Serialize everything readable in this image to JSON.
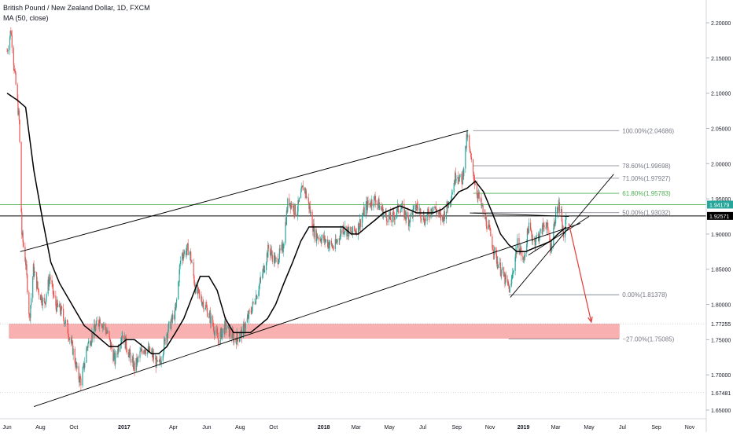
{
  "header": {
    "title": "British Pound / New Zealand Dollar, 1D, FXCM",
    "indicator": "MA (50, close)"
  },
  "colors": {
    "up": "#26a69a",
    "down": "#ef5350",
    "ma": "#000000",
    "trendline": "#000000",
    "fib_line": "#787b86",
    "fib_618": "#4caf50",
    "support_zone": "#f7a3a3",
    "arrow": "#e53935",
    "price_tag_bg": "#26a69a",
    "last_tag_bg": "#000000"
  },
  "chart_data": {
    "type": "candlestick",
    "symbol": "British Pound / New Zealand Dollar",
    "timeframe": "1D",
    "source": "FXCM",
    "x_range": [
      "2016-06-01",
      "2019-11-30"
    ],
    "ylim": [
      1.64,
      2.225
    ],
    "y_ticks": [
      1.65,
      1.7,
      1.75,
      1.8,
      1.85,
      1.9,
      1.95,
      2.0,
      2.05,
      2.1,
      2.15,
      2.2
    ],
    "y_tick_labels": [
      "1.65000",
      "1.70000",
      "1.75000",
      "1.80000",
      "1.85000",
      "1.90000",
      "1.95000",
      "2.00000",
      "2.05000",
      "2.10000",
      "2.15000",
      "2.20000"
    ],
    "x_ticks": [
      {
        "date": "2016-06-01",
        "label": "Jun"
      },
      {
        "date": "2016-08-01",
        "label": "Aug"
      },
      {
        "date": "2016-10-01",
        "label": "Oct"
      },
      {
        "date": "2017-01-01",
        "label": "2017"
      },
      {
        "date": "2017-04-01",
        "label": "Apr"
      },
      {
        "date": "2017-06-01",
        "label": "Jun"
      },
      {
        "date": "2017-08-01",
        "label": "Aug"
      },
      {
        "date": "2017-10-01",
        "label": "Oct"
      },
      {
        "date": "2018-01-01",
        "label": "2018"
      },
      {
        "date": "2018-03-01",
        "label": "Mar"
      },
      {
        "date": "2018-05-01",
        "label": "May"
      },
      {
        "date": "2018-07-01",
        "label": "Jul"
      },
      {
        "date": "2018-09-01",
        "label": "Sep"
      },
      {
        "date": "2018-11-01",
        "label": "Nov"
      },
      {
        "date": "2019-01-01",
        "label": "2019"
      },
      {
        "date": "2019-03-01",
        "label": "Mar"
      },
      {
        "date": "2019-05-01",
        "label": "May"
      },
      {
        "date": "2019-07-01",
        "label": "Jul"
      },
      {
        "date": "2019-09-01",
        "label": "Sep"
      },
      {
        "date": "2019-11-01",
        "label": "Nov"
      }
    ],
    "price_path": [
      [
        "2016-06-01",
        2.16
      ],
      [
        "2016-06-08",
        2.19
      ],
      [
        "2016-06-16",
        2.12
      ],
      [
        "2016-06-23",
        2.06
      ],
      [
        "2016-06-28",
        1.9
      ],
      [
        "2016-07-05",
        1.86
      ],
      [
        "2016-07-12",
        1.78
      ],
      [
        "2016-07-19",
        1.85
      ],
      [
        "2016-07-28",
        1.82
      ],
      [
        "2016-08-08",
        1.8
      ],
      [
        "2016-08-18",
        1.84
      ],
      [
        "2016-08-28",
        1.8
      ],
      [
        "2016-09-08",
        1.79
      ],
      [
        "2016-09-18",
        1.77
      ],
      [
        "2016-10-01",
        1.73
      ],
      [
        "2016-10-08",
        1.7
      ],
      [
        "2016-10-15",
        1.69
      ],
      [
        "2016-10-25",
        1.74
      ],
      [
        "2016-11-05",
        1.76
      ],
      [
        "2016-11-18",
        1.78
      ],
      [
        "2016-12-01",
        1.76
      ],
      [
        "2016-12-15",
        1.72
      ],
      [
        "2016-12-28",
        1.76
      ],
      [
        "2017-01-10",
        1.73
      ],
      [
        "2017-01-20",
        1.71
      ],
      [
        "2017-02-05",
        1.74
      ],
      [
        "2017-02-20",
        1.73
      ],
      [
        "2017-03-05",
        1.71
      ],
      [
        "2017-03-20",
        1.76
      ],
      [
        "2017-04-05",
        1.79
      ],
      [
        "2017-04-15",
        1.87
      ],
      [
        "2017-04-30",
        1.88
      ],
      [
        "2017-05-12",
        1.82
      ],
      [
        "2017-05-28",
        1.8
      ],
      [
        "2017-06-08",
        1.78
      ],
      [
        "2017-06-22",
        1.75
      ],
      [
        "2017-07-05",
        1.77
      ],
      [
        "2017-07-22",
        1.75
      ],
      [
        "2017-08-05",
        1.76
      ],
      [
        "2017-08-25",
        1.8
      ],
      [
        "2017-09-10",
        1.84
      ],
      [
        "2017-09-22",
        1.88
      ],
      [
        "2017-10-05",
        1.86
      ],
      [
        "2017-10-18",
        1.88
      ],
      [
        "2017-10-28",
        1.95
      ],
      [
        "2017-11-12",
        1.93
      ],
      [
        "2017-11-25",
        1.97
      ],
      [
        "2017-12-05",
        1.94
      ],
      [
        "2017-12-15",
        1.9
      ],
      [
        "2018-01-05",
        1.89
      ],
      [
        "2018-01-20",
        1.88
      ],
      [
        "2018-02-05",
        1.91
      ],
      [
        "2018-02-20",
        1.9
      ],
      [
        "2018-03-05",
        1.91
      ],
      [
        "2018-03-20",
        1.94
      ],
      [
        "2018-04-05",
        1.95
      ],
      [
        "2018-04-20",
        1.93
      ],
      [
        "2018-05-05",
        1.92
      ],
      [
        "2018-05-20",
        1.94
      ],
      [
        "2018-06-05",
        1.92
      ],
      [
        "2018-06-20",
        1.94
      ],
      [
        "2018-07-05",
        1.92
      ],
      [
        "2018-07-20",
        1.94
      ],
      [
        "2018-08-05",
        1.92
      ],
      [
        "2018-08-20",
        1.95
      ],
      [
        "2018-09-01",
        1.99
      ],
      [
        "2018-09-10",
        1.97
      ],
      [
        "2018-09-20",
        2.04
      ],
      [
        "2018-09-28",
        2.0
      ],
      [
        "2018-10-08",
        1.96
      ],
      [
        "2018-10-20",
        1.93
      ],
      [
        "2018-11-01",
        1.9
      ],
      [
        "2018-11-10",
        1.87
      ],
      [
        "2018-11-20",
        1.85
      ],
      [
        "2018-12-01",
        1.83
      ],
      [
        "2018-12-08",
        1.82
      ],
      [
        "2018-12-15",
        1.86
      ],
      [
        "2018-12-22",
        1.89
      ],
      [
        "2019-01-01",
        1.86
      ],
      [
        "2019-01-10",
        1.91
      ],
      [
        "2019-01-20",
        1.89
      ],
      [
        "2019-02-01",
        1.9
      ],
      [
        "2019-02-10",
        1.92
      ],
      [
        "2019-02-20",
        1.88
      ],
      [
        "2019-03-01",
        1.93
      ],
      [
        "2019-03-10",
        1.94
      ],
      [
        "2019-03-15",
        1.89
      ],
      [
        "2019-03-20",
        1.926
      ]
    ],
    "ma50_path": [
      [
        "2016-06-01",
        2.1
      ],
      [
        "2016-06-20",
        2.09
      ],
      [
        "2016-07-05",
        2.08
      ],
      [
        "2016-07-20",
        1.99
      ],
      [
        "2016-08-05",
        1.92
      ],
      [
        "2016-08-20",
        1.86
      ],
      [
        "2016-09-05",
        1.83
      ],
      [
        "2016-09-20",
        1.81
      ],
      [
        "2016-10-05",
        1.79
      ],
      [
        "2016-10-20",
        1.77
      ],
      [
        "2016-11-05",
        1.76
      ],
      [
        "2016-11-20",
        1.75
      ],
      [
        "2016-12-05",
        1.74
      ],
      [
        "2016-12-20",
        1.74
      ],
      [
        "2017-01-05",
        1.75
      ],
      [
        "2017-01-20",
        1.75
      ],
      [
        "2017-02-05",
        1.74
      ],
      [
        "2017-02-20",
        1.73
      ],
      [
        "2017-03-05",
        1.73
      ],
      [
        "2017-03-20",
        1.74
      ],
      [
        "2017-04-05",
        1.76
      ],
      [
        "2017-04-20",
        1.78
      ],
      [
        "2017-05-05",
        1.81
      ],
      [
        "2017-05-20",
        1.84
      ],
      [
        "2017-06-05",
        1.84
      ],
      [
        "2017-06-20",
        1.82
      ],
      [
        "2017-07-05",
        1.78
      ],
      [
        "2017-07-20",
        1.76
      ],
      [
        "2017-08-05",
        1.76
      ],
      [
        "2017-08-20",
        1.76
      ],
      [
        "2017-09-05",
        1.77
      ],
      [
        "2017-09-20",
        1.78
      ],
      [
        "2017-10-05",
        1.8
      ],
      [
        "2017-10-20",
        1.83
      ],
      [
        "2017-11-05",
        1.86
      ],
      [
        "2017-11-20",
        1.89
      ],
      [
        "2017-12-05",
        1.91
      ],
      [
        "2017-12-20",
        1.91
      ],
      [
        "2018-01-05",
        1.91
      ],
      [
        "2018-01-20",
        1.91
      ],
      [
        "2018-02-05",
        1.91
      ],
      [
        "2018-02-20",
        1.9
      ],
      [
        "2018-03-05",
        1.9
      ],
      [
        "2018-03-20",
        1.91
      ],
      [
        "2018-04-05",
        1.92
      ],
      [
        "2018-04-20",
        1.93
      ],
      [
        "2018-05-05",
        1.935
      ],
      [
        "2018-05-20",
        1.94
      ],
      [
        "2018-06-05",
        1.935
      ],
      [
        "2018-06-20",
        1.93
      ],
      [
        "2018-07-05",
        1.93
      ],
      [
        "2018-07-20",
        1.93
      ],
      [
        "2018-08-05",
        1.935
      ],
      [
        "2018-08-20",
        1.945
      ],
      [
        "2018-09-05",
        1.96
      ],
      [
        "2018-09-20",
        1.965
      ],
      [
        "2018-10-05",
        1.975
      ],
      [
        "2018-10-20",
        1.96
      ],
      [
        "2018-11-05",
        1.93
      ],
      [
        "2018-11-20",
        1.9
      ],
      [
        "2018-12-05",
        1.885
      ],
      [
        "2018-12-20",
        1.875
      ],
      [
        "2019-01-05",
        1.875
      ],
      [
        "2019-01-20",
        1.88
      ],
      [
        "2019-02-05",
        1.885
      ],
      [
        "2019-02-20",
        1.89
      ],
      [
        "2019-03-05",
        1.9
      ],
      [
        "2019-03-20",
        1.91
      ]
    ],
    "trendlines": [
      {
        "name": "channel-upper",
        "from": [
          "2016-06-25",
          1.875
        ],
        "to": [
          "2018-09-22",
          2.047
        ]
      },
      {
        "name": "channel-lower",
        "from": [
          "2016-07-20",
          1.655
        ],
        "to": [
          "2019-04-15",
          1.915
        ]
      },
      {
        "name": "wedge-upper",
        "from": [
          "2018-09-25",
          1.93
        ],
        "to": [
          "2019-03-25",
          1.925
        ]
      },
      {
        "name": "wedge-lower",
        "from": [
          "2018-12-08",
          1.81
        ],
        "to": [
          "2019-06-15",
          1.985
        ]
      },
      {
        "name": "wedge-base",
        "from": [
          "2019-01-10",
          1.87
        ],
        "to": [
          "2019-05-01",
          1.925
        ]
      }
    ],
    "fibonacci": {
      "x_start": "2018-10-01",
      "x_end": "2019-06-25",
      "levels": [
        {
          "label": "100.00%(2.04686)",
          "value": 2.04686
        },
        {
          "label": "78.60%(1.99698)",
          "value": 1.99698
        },
        {
          "label": "71.00%(1.97927)",
          "value": 1.97927
        },
        {
          "label": "61.80%(1.95783)",
          "value": 1.95783
        },
        {
          "label": "50.00%(1.93032)",
          "value": 1.93032
        },
        {
          "label": "0.00%(1.81378)",
          "value": 1.81378
        },
        {
          "label": "−27.00%(1.75085)",
          "value": 1.75085
        }
      ]
    },
    "support_zone": {
      "y_top": 1.772,
      "y_bottom": 1.752,
      "x_start": "2016-06-05",
      "x_end": "2019-06-25"
    },
    "projection_arrow": {
      "from": [
        "2019-03-25",
        1.915
      ],
      "to": [
        "2019-05-05",
        1.775
      ]
    },
    "price_labels": [
      {
        "label": "1.94179",
        "value": 1.94179,
        "style": "green"
      },
      {
        "label": "1.92571",
        "value": 1.92571,
        "style": "black"
      },
      {
        "label": "1.77255",
        "value": 1.77255,
        "style": "plain"
      },
      {
        "label": "1.67481",
        "value": 1.67481,
        "style": "plain"
      }
    ],
    "reference_lines": [
      {
        "value": 1.94179,
        "color": "green"
      },
      {
        "value": 1.92571,
        "color": "black"
      }
    ]
  }
}
